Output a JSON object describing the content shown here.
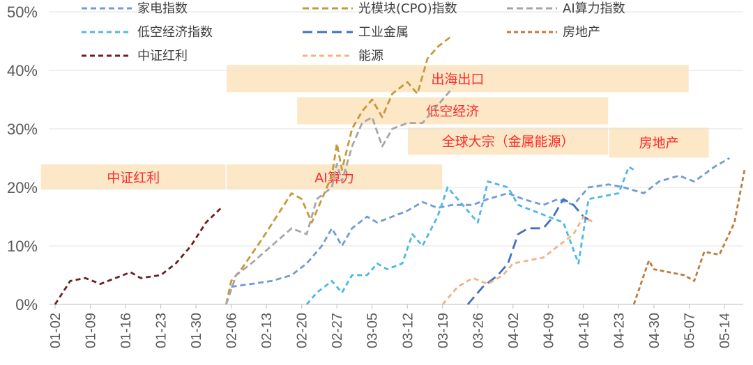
{
  "chart_data": {
    "type": "line",
    "ylim": [
      0,
      0.5
    ],
    "yticks": [
      0,
      0.1,
      0.2,
      0.3,
      0.4,
      0.5
    ],
    "ytick_labels": [
      "0%",
      "10%",
      "20%",
      "30%",
      "40%",
      "50%"
    ],
    "xticks": [
      "01-02",
      "01-09",
      "01-16",
      "01-23",
      "01-30",
      "02-06",
      "02-13",
      "02-20",
      "02-27",
      "03-05",
      "03-12",
      "03-19",
      "03-26",
      "04-02",
      "04-09",
      "04-16",
      "04-23",
      "04-30",
      "05-07",
      "05-14"
    ],
    "xlabel": "",
    "ylabel": "",
    "grid": "horizontal",
    "legend": "top",
    "series": [
      {
        "name": "家电指数",
        "color": "#6f9bd8",
        "dash": "8 5",
        "data": [
          [
            "02-06",
            0.03
          ],
          [
            "02-10",
            0.035
          ],
          [
            "02-14",
            0.04
          ],
          [
            "02-18",
            0.05
          ],
          [
            "02-21",
            0.07
          ],
          [
            "02-24",
            0.1
          ],
          [
            "02-26",
            0.13
          ],
          [
            "02-28",
            0.1
          ],
          [
            "03-01",
            0.13
          ],
          [
            "03-04",
            0.15
          ],
          [
            "03-06",
            0.14
          ],
          [
            "03-09",
            0.15
          ],
          [
            "03-12",
            0.16
          ],
          [
            "03-15",
            0.175
          ],
          [
            "03-18",
            0.165
          ],
          [
            "03-21",
            0.17
          ],
          [
            "03-25",
            0.17
          ],
          [
            "03-28",
            0.18
          ],
          [
            "04-01",
            0.19
          ],
          [
            "04-04",
            0.18
          ],
          [
            "04-08",
            0.17
          ],
          [
            "04-11",
            0.18
          ],
          [
            "04-14",
            0.17
          ],
          [
            "04-17",
            0.2
          ],
          [
            "04-21",
            0.205
          ],
          [
            "04-24",
            0.2
          ],
          [
            "04-28",
            0.19
          ],
          [
            "05-01",
            0.21
          ],
          [
            "05-05",
            0.22
          ],
          [
            "05-08",
            0.21
          ],
          [
            "05-12",
            0.235
          ],
          [
            "05-15",
            0.25
          ]
        ]
      },
      {
        "name": "光模块(CPO)指数",
        "color": "#c49a3c",
        "dash": "9 5",
        "data": [
          [
            "02-05",
            0.0
          ],
          [
            "02-06",
            0.04
          ],
          [
            "02-08",
            0.06
          ],
          [
            "02-12",
            0.11
          ],
          [
            "02-15",
            0.15
          ],
          [
            "02-18",
            0.19
          ],
          [
            "02-20",
            0.18
          ],
          [
            "02-22",
            0.14
          ],
          [
            "02-24",
            0.18
          ],
          [
            "02-26",
            0.22
          ],
          [
            "02-27",
            0.275
          ],
          [
            "02-28",
            0.23
          ],
          [
            "03-01",
            0.3
          ],
          [
            "03-03",
            0.33
          ],
          [
            "03-05",
            0.35
          ],
          [
            "03-07",
            0.32
          ],
          [
            "03-09",
            0.36
          ],
          [
            "03-12",
            0.38
          ],
          [
            "03-14",
            0.36
          ],
          [
            "03-16",
            0.42
          ],
          [
            "03-18",
            0.44
          ],
          [
            "03-21",
            0.46
          ]
        ]
      },
      {
        "name": "AI算力指数",
        "color": "#a6a6a6",
        "dash": "9 5",
        "data": [
          [
            "02-05",
            0.0
          ],
          [
            "02-07",
            0.05
          ],
          [
            "02-10",
            0.07
          ],
          [
            "02-14",
            0.1
          ],
          [
            "02-18",
            0.13
          ],
          [
            "02-21",
            0.12
          ],
          [
            "02-23",
            0.18
          ],
          [
            "02-26",
            0.2
          ],
          [
            "02-27",
            0.24
          ],
          [
            "02-28",
            0.21
          ],
          [
            "03-01",
            0.27
          ],
          [
            "03-03",
            0.31
          ],
          [
            "03-05",
            0.32
          ],
          [
            "03-07",
            0.27
          ],
          [
            "03-09",
            0.3
          ],
          [
            "03-12",
            0.31
          ],
          [
            "03-15",
            0.31
          ],
          [
            "03-18",
            0.34
          ],
          [
            "03-21",
            0.37
          ]
        ]
      },
      {
        "name": "低空经济指数",
        "color": "#4fb6ea",
        "dash": "7 5",
        "data": [
          [
            "02-21",
            0.0
          ],
          [
            "02-23",
            0.02
          ],
          [
            "02-26",
            0.04
          ],
          [
            "02-28",
            0.02
          ],
          [
            "03-01",
            0.05
          ],
          [
            "03-04",
            0.05
          ],
          [
            "03-06",
            0.07
          ],
          [
            "03-08",
            0.06
          ],
          [
            "03-11",
            0.07
          ],
          [
            "03-13",
            0.12
          ],
          [
            "03-15",
            0.1
          ],
          [
            "03-18",
            0.15
          ],
          [
            "03-20",
            0.2
          ],
          [
            "03-23",
            0.17
          ],
          [
            "03-26",
            0.14
          ],
          [
            "03-28",
            0.21
          ],
          [
            "04-01",
            0.2
          ],
          [
            "04-03",
            0.17
          ],
          [
            "04-06",
            0.16
          ],
          [
            "04-09",
            0.15
          ],
          [
            "04-12",
            0.14
          ],
          [
            "04-15",
            0.07
          ],
          [
            "04-17",
            0.18
          ],
          [
            "04-20",
            0.185
          ],
          [
            "04-23",
            0.19
          ],
          [
            "04-25",
            0.235
          ],
          [
            "04-26",
            0.23
          ]
        ]
      },
      {
        "name": "工业金属",
        "color": "#3f6fc6",
        "dash": "14 7",
        "data": [
          [
            "03-24",
            0.0
          ],
          [
            "03-27",
            0.03
          ],
          [
            "03-30",
            0.05
          ],
          [
            "04-01",
            0.07
          ],
          [
            "04-03",
            0.12
          ],
          [
            "04-05",
            0.13
          ],
          [
            "04-08",
            0.13
          ],
          [
            "04-10",
            0.15
          ],
          [
            "04-12",
            0.18
          ],
          [
            "04-14",
            0.17
          ],
          [
            "04-16",
            0.15
          ],
          [
            "04-18",
            0.14
          ]
        ]
      },
      {
        "name": "房地产",
        "color": "#c07a3a",
        "dash": "6 4",
        "data": [
          [
            "04-26",
            0.0
          ],
          [
            "04-29",
            0.075
          ],
          [
            "04-30",
            0.06
          ],
          [
            "05-03",
            0.055
          ],
          [
            "05-06",
            0.05
          ],
          [
            "05-08",
            0.04
          ],
          [
            "05-10",
            0.09
          ],
          [
            "05-13",
            0.085
          ],
          [
            "05-16",
            0.14
          ],
          [
            "05-18",
            0.23
          ]
        ]
      },
      {
        "name": "中证红利",
        "color": "#6e1e1e",
        "dash": "7 5",
        "data": [
          [
            "01-02",
            0.0
          ],
          [
            "01-05",
            0.04
          ],
          [
            "01-08",
            0.045
          ],
          [
            "01-11",
            0.035
          ],
          [
            "01-14",
            0.045
          ],
          [
            "01-17",
            0.055
          ],
          [
            "01-19",
            0.045
          ],
          [
            "01-23",
            0.05
          ],
          [
            "01-26",
            0.07
          ],
          [
            "01-29",
            0.1
          ],
          [
            "02-01",
            0.14
          ],
          [
            "02-04",
            0.165
          ]
        ]
      },
      {
        "name": "能源",
        "color": "#f4b183",
        "dash": "7 5",
        "data": [
          [
            "03-19",
            0.0
          ],
          [
            "03-22",
            0.03
          ],
          [
            "03-25",
            0.045
          ],
          [
            "03-28",
            0.035
          ],
          [
            "03-31",
            0.05
          ],
          [
            "04-02",
            0.07
          ],
          [
            "04-05",
            0.075
          ],
          [
            "04-08",
            0.08
          ],
          [
            "04-11",
            0.1
          ],
          [
            "04-14",
            0.12
          ],
          [
            "04-16",
            0.15
          ],
          [
            "04-18",
            0.14
          ]
        ]
      }
    ],
    "bands": [
      {
        "label": "中证红利",
        "start": "12-31",
        "end": "02-05",
        "ymin": 0.195,
        "ymax": 0.24
      },
      {
        "label": "AI算力",
        "start": "02-05",
        "end": "03-19",
        "ymin": 0.195,
        "ymax": 0.24
      },
      {
        "label": "出海出口",
        "start": "02-05",
        "end": "05-07",
        "ymin": 0.362,
        "ymax": 0.41
      },
      {
        "label": "低空经济",
        "start": "02-19",
        "end": "04-21",
        "ymin": 0.307,
        "ymax": 0.355
      },
      {
        "label": "全球大宗（金属能源）",
        "start": "03-12",
        "end": "04-21",
        "ymin": 0.255,
        "ymax": 0.303
      },
      {
        "label": "房地产",
        "start": "04-21",
        "end": "05-11",
        "ymin": 0.25,
        "ymax": 0.303
      }
    ]
  }
}
